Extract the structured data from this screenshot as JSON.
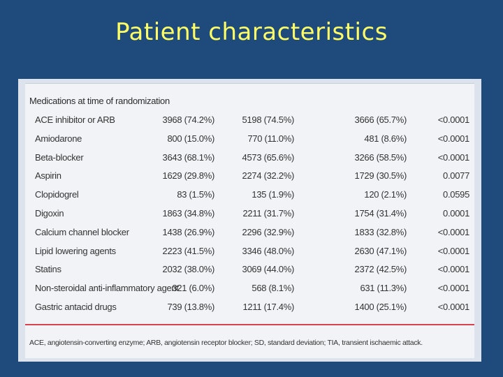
{
  "slide": {
    "title": "Patient characteristics"
  },
  "table": {
    "section_heading": "Medications at time of randomization",
    "rows": [
      {
        "name": "ACE inhibitor or ARB",
        "a": "3968 (74.2%)",
        "b": "5198 (74.5%)",
        "c": "3666 (65.7%)",
        "p": "<0.0001"
      },
      {
        "name": "Amiodarone",
        "a": "800 (15.0%)",
        "b": "770 (11.0%)",
        "c": "481 (8.6%)",
        "p": "<0.0001"
      },
      {
        "name": "Beta-blocker",
        "a": "3643 (68.1%)",
        "b": "4573 (65.6%)",
        "c": "3266 (58.5%)",
        "p": "<0.0001"
      },
      {
        "name": "Aspirin",
        "a": "1629 (29.8%)",
        "b": "2274 (32.2%)",
        "c": "1729 (30.5%)",
        "p": "0.0077"
      },
      {
        "name": "Clopidogrel",
        "a": "83 (1.5%)",
        "b": "135 (1.9%)",
        "c": "120 (2.1%)",
        "p": "0.0595"
      },
      {
        "name": "Digoxin",
        "a": "1863 (34.8%)",
        "b": "2211 (31.7%)",
        "c": "1754 (31.4%)",
        "p": "0.0001"
      },
      {
        "name": "Calcium channel blocker",
        "a": "1438 (26.9%)",
        "b": "2296 (32.9%)",
        "c": "1833 (32.8%)",
        "p": "<0.0001"
      },
      {
        "name": "Lipid lowering agents",
        "a": "2223 (41.5%)",
        "b": "3346 (48.0%)",
        "c": "2630 (47.1%)",
        "p": "<0.0001"
      },
      {
        "name": "Statins",
        "a": "2032 (38.0%)",
        "b": "3069 (44.0%)",
        "c": "2372 (42.5%)",
        "p": "<0.0001"
      },
      {
        "name": "Non-steroidal anti-inflammatory agent",
        "a": "321 (6.0%)",
        "b": "568 (8.1%)",
        "c": "631 (11.3%)",
        "p": "<0.0001"
      },
      {
        "name": "Gastric antacid drugs",
        "a": "739 (13.8%)",
        "b": "1211 (17.4%)",
        "c": "1400 (25.1%)",
        "p": "<0.0001"
      }
    ],
    "footnote": "ACE, angiotensin-converting enzyme; ARB, angiotensin receptor blocker; SD, standard deviation; TIA, transient ischaemic attack.",
    "accent_color": "#d8424f"
  }
}
